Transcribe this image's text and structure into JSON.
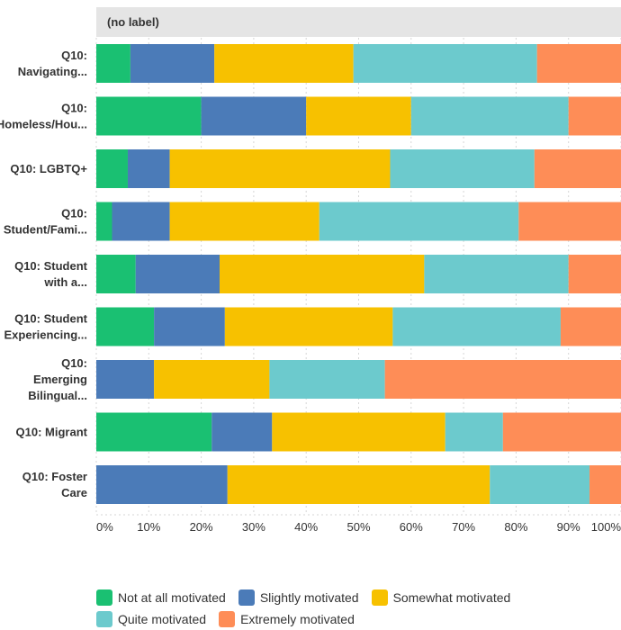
{
  "header_label": "(no label)",
  "chart_data": {
    "type": "bar",
    "orientation": "horizontal",
    "stacked": true,
    "categories": [
      [
        "Q10:",
        "Navigating..."
      ],
      [
        "Q10:",
        "Homeless/Hou..."
      ],
      [
        "Q10: LGBTQ+"
      ],
      [
        "Q10:",
        "Student/Fami..."
      ],
      [
        "Q10: Student",
        "with a..."
      ],
      [
        "Q10: Student",
        "Experiencing..."
      ],
      [
        "Q10:",
        "Emerging",
        "Bilingual..."
      ],
      [
        "Q10: Migrant"
      ],
      [
        "Q10: Foster",
        "Care"
      ]
    ],
    "series": [
      {
        "name": "Not at all motivated",
        "color": "#1ac072",
        "values": [
          6.5,
          20,
          6,
          3,
          7.5,
          11,
          0,
          22,
          0
        ]
      },
      {
        "name": "Slightly motivated",
        "color": "#4b7bb8",
        "values": [
          16,
          20,
          8,
          11,
          16,
          13.5,
          11,
          11.5,
          25
        ]
      },
      {
        "name": "Somewhat motivated",
        "color": "#f7c100",
        "values": [
          26.5,
          20,
          42,
          28.5,
          39,
          32,
          22,
          33,
          50
        ]
      },
      {
        "name": "Quite motivated",
        "color": "#6ccacd",
        "values": [
          35,
          30,
          27.5,
          38,
          27.5,
          32,
          22,
          11,
          19
        ]
      },
      {
        "name": "Extremely motivated",
        "color": "#fe8d57",
        "values": [
          16,
          10,
          16.5,
          19.5,
          10,
          11.5,
          45,
          22.5,
          6
        ]
      }
    ],
    "x_ticks": [
      "0%",
      "10%",
      "20%",
      "30%",
      "40%",
      "50%",
      "60%",
      "70%",
      "80%",
      "90%",
      "100%"
    ],
    "xlim": [
      0,
      100
    ],
    "grid": true,
    "legend_position": "bottom"
  }
}
